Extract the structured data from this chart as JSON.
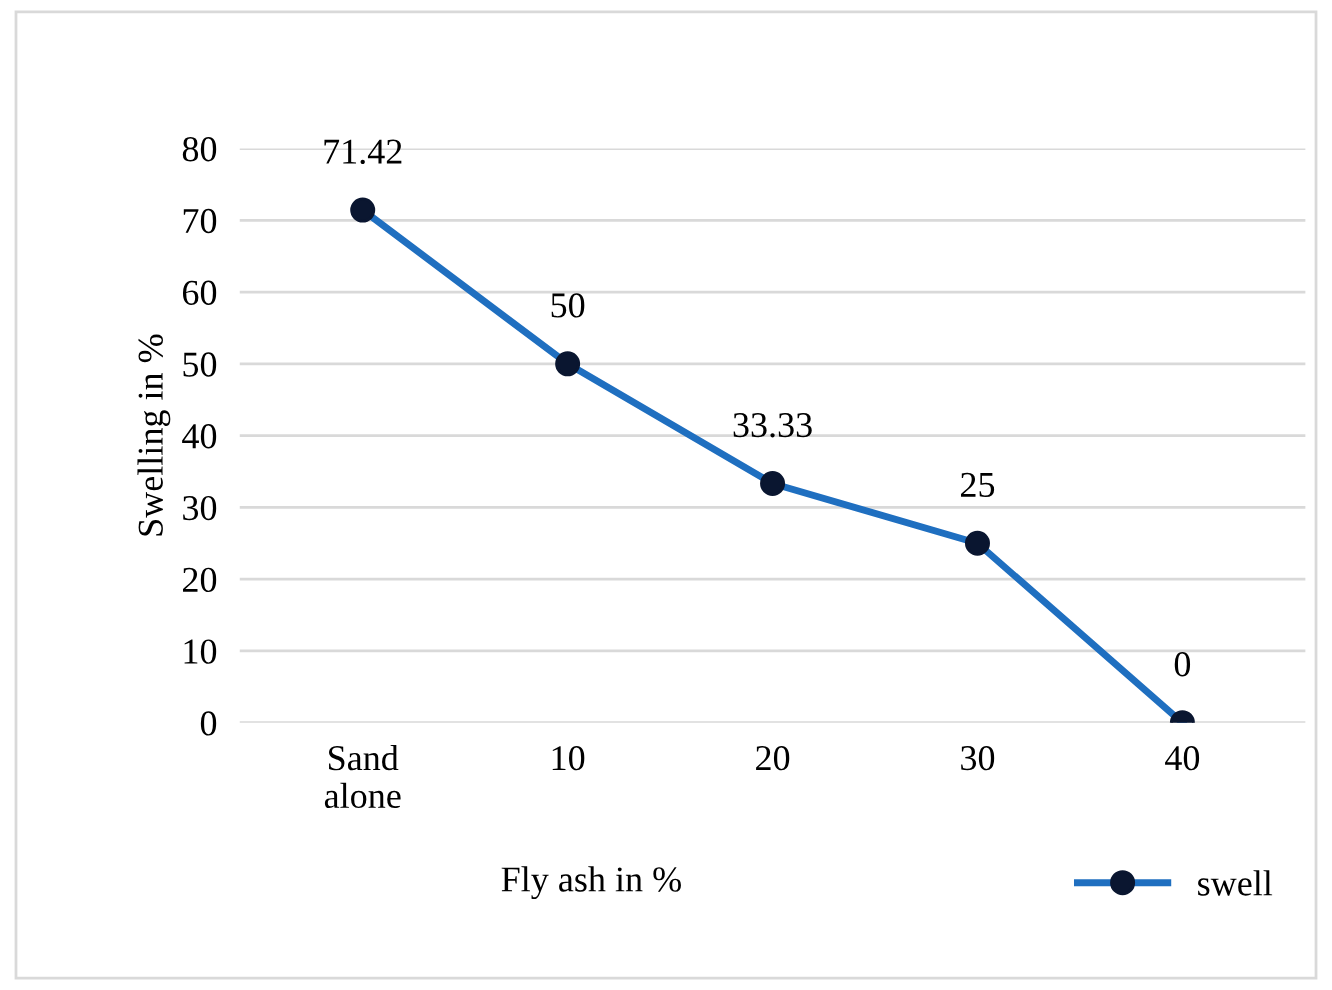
{
  "chart_data": {
    "type": "line",
    "xlabel": "Fly ash in %",
    "ylabel": "Swelling in %",
    "categories": [
      "Sand\nalone",
      "10",
      "20",
      "30",
      "40"
    ],
    "series": [
      {
        "name": "swell",
        "color": "#1f6fc0",
        "values": [
          71.42,
          50,
          33.33,
          25,
          0
        ]
      }
    ],
    "ylim": [
      0,
      80
    ],
    "yticks": [
      0,
      10,
      20,
      30,
      40,
      50,
      60,
      70,
      80
    ],
    "grid": "y",
    "legend": "bottom right",
    "marker": "circle",
    "line_style": "solid",
    "data_labels": true
  }
}
